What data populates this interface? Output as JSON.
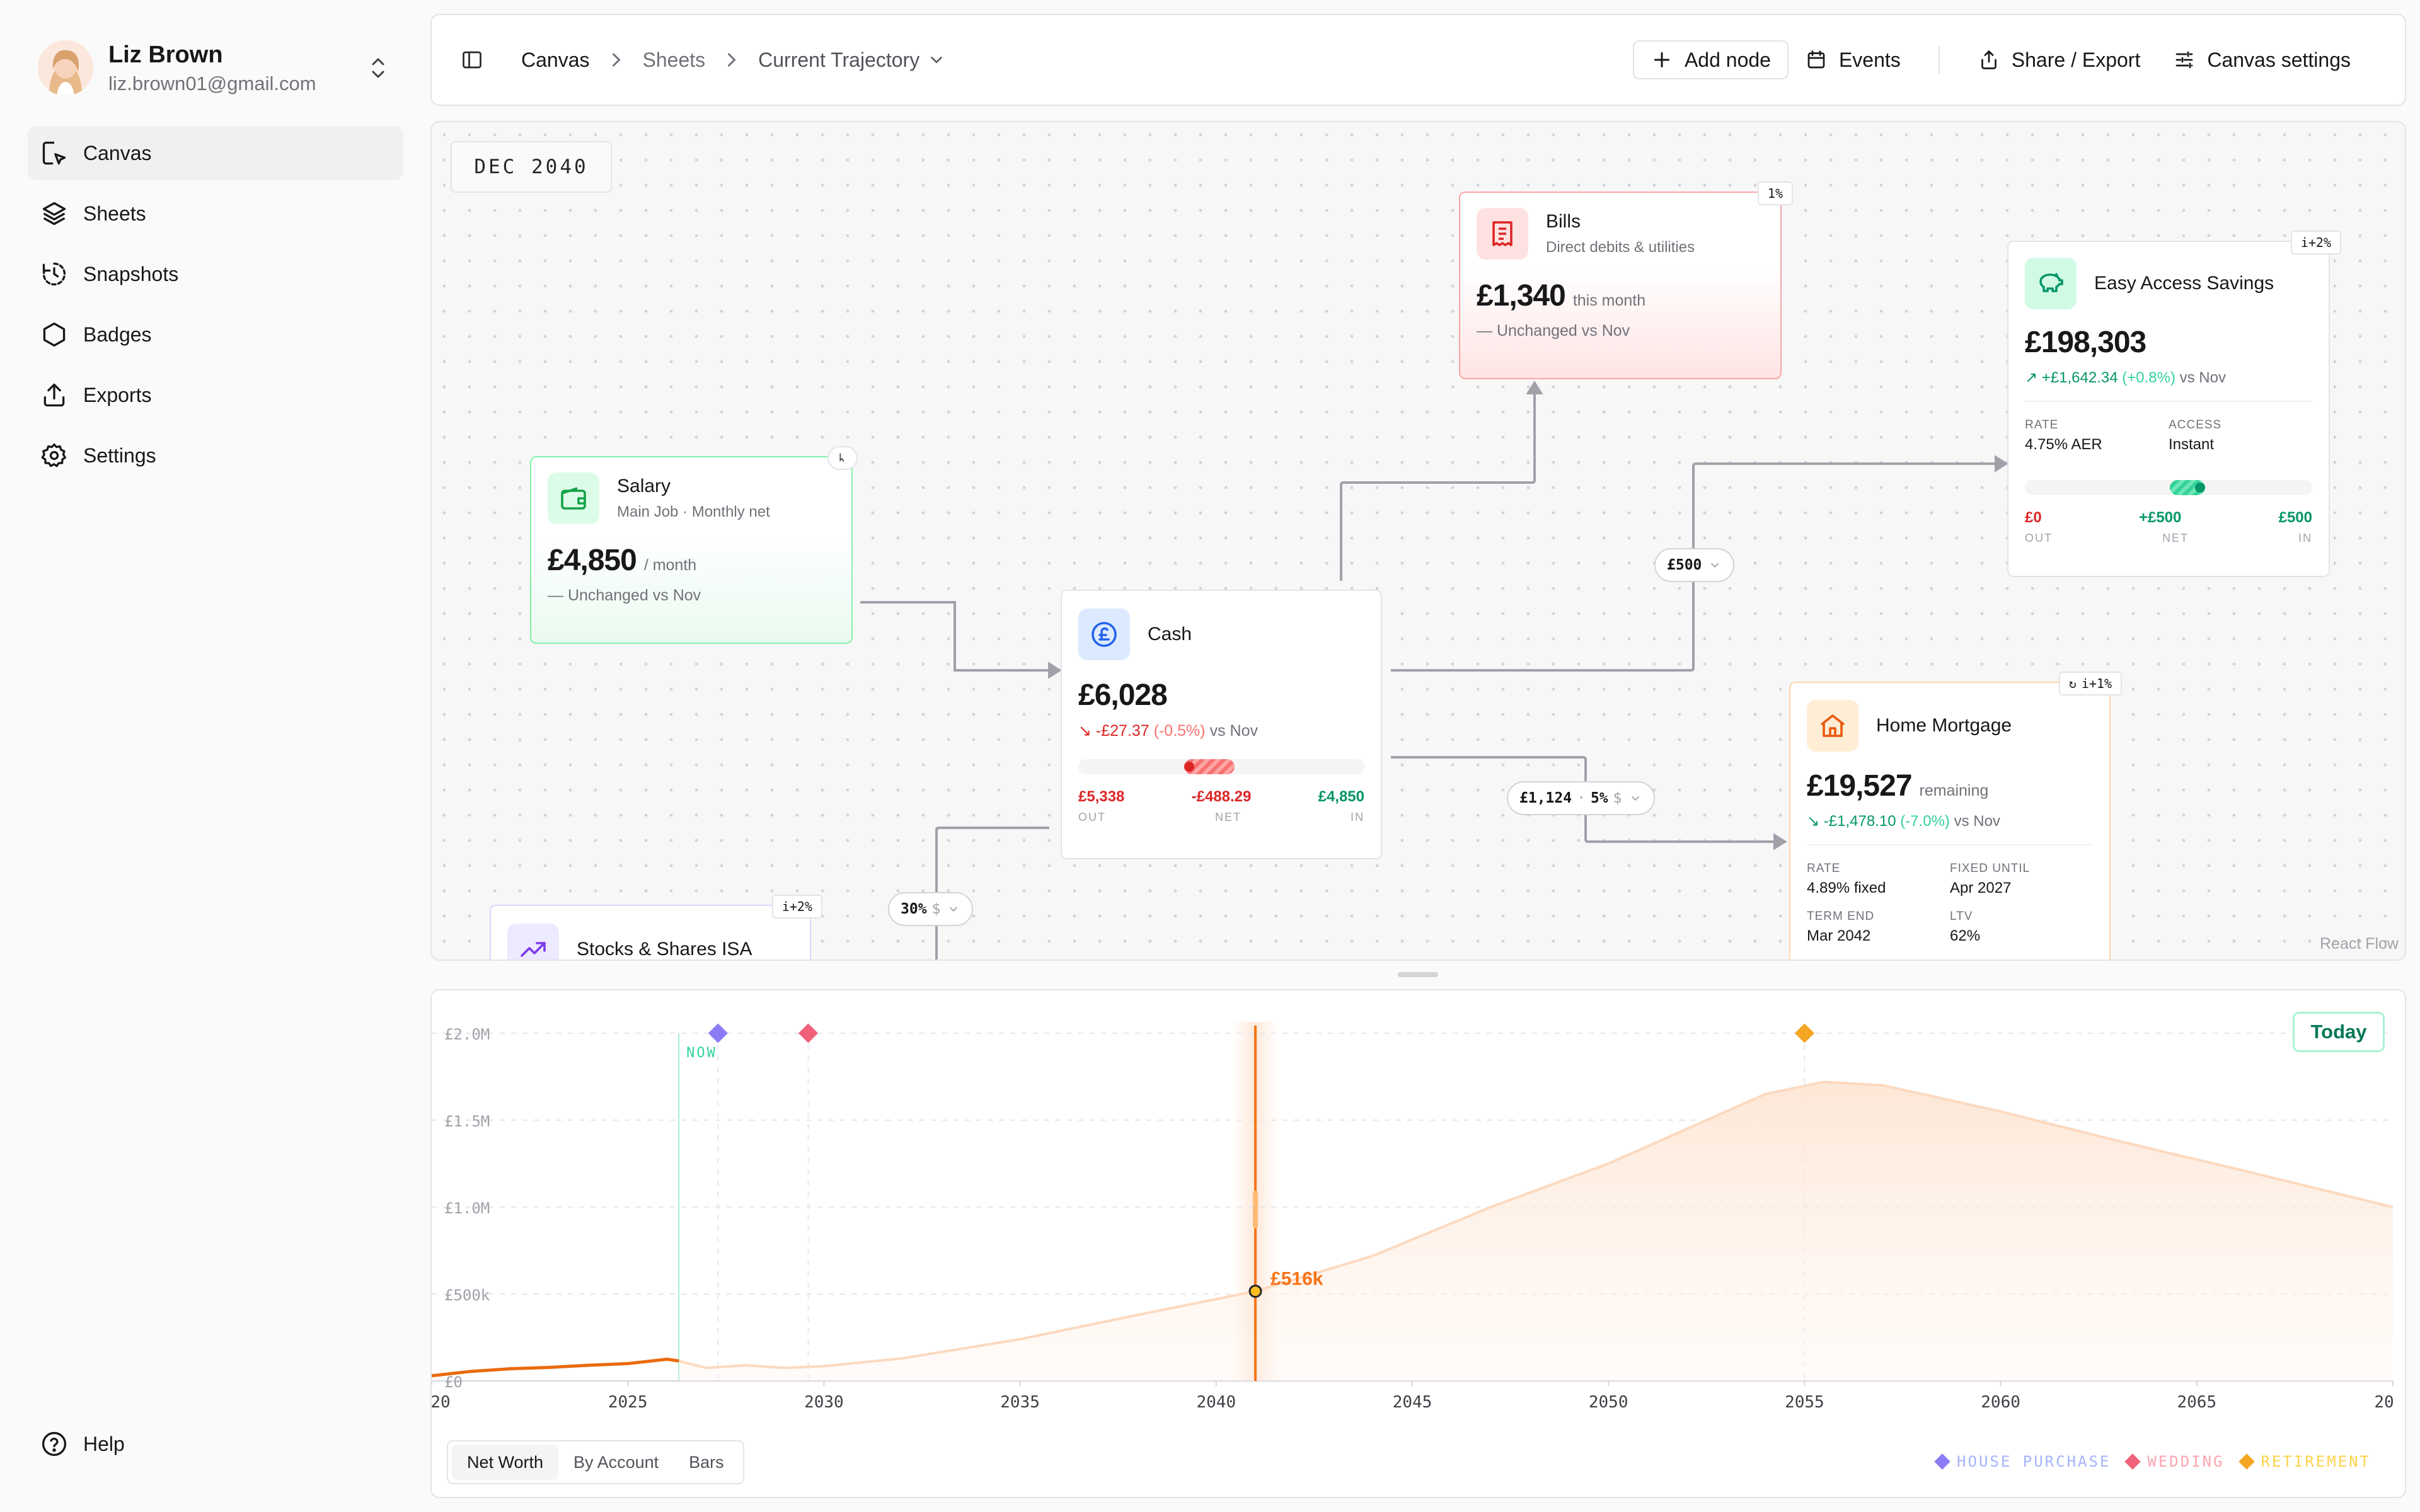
{
  "user": {
    "name": "Liz Brown",
    "email": "liz.brown01@gmail.com"
  },
  "nav": [
    {
      "label": "Canvas",
      "icon": "cursor-icon",
      "active": true
    },
    {
      "label": "Sheets",
      "icon": "layers-icon"
    },
    {
      "label": "Snapshots",
      "icon": "history-icon"
    },
    {
      "label": "Badges",
      "icon": "hexagon-icon"
    },
    {
      "label": "Exports",
      "icon": "upload-icon"
    },
    {
      "label": "Settings",
      "icon": "gear-icon"
    }
  ],
  "help_label": "Help",
  "breadcrumb": {
    "root": "Canvas",
    "mid": "Sheets",
    "current": "Current Trajectory"
  },
  "toolbar": {
    "add_node": "Add node",
    "events": "Events",
    "share": "Share / Export",
    "settings": "Canvas settings"
  },
  "canvas": {
    "date": "DEC 2040",
    "watermark": "React Flow",
    "salary": {
      "title": "Salary",
      "subtitle": "Main Job · Monthly net",
      "value": "£4,850",
      "unit": "/ month",
      "delta": "— Unchanged vs Nov"
    },
    "bills": {
      "title": "Bills",
      "subtitle": "Direct debits & utilities",
      "value": "£1,340",
      "unit": "this month",
      "delta": "— Unchanged vs Nov",
      "tag": "1%"
    },
    "cash": {
      "title": "Cash",
      "value": "£6,028",
      "delta_amount": "-£27.37",
      "delta_pct": "(-0.5%)",
      "delta_suffix": "vs Nov",
      "out": "£5,338",
      "net": "-£488.29",
      "in": "£4,850",
      "out_label": "OUT",
      "net_label": "NET",
      "in_label": "IN"
    },
    "savings": {
      "title": "Easy Access Savings",
      "value": "£198,303",
      "delta_amount": "+£1,642.34",
      "delta_pct": "(+0.8%)",
      "delta_suffix": "vs Nov",
      "rate_label": "RATE",
      "rate": "4.75% AER",
      "access_label": "ACCESS",
      "access": "Instant",
      "out": "£0",
      "net": "+£500",
      "in": "£500",
      "out_label": "OUT",
      "net_label": "NET",
      "in_label": "IN",
      "tag": "i+2%"
    },
    "mortgage": {
      "title": "Home Mortgage",
      "value": "£19,527",
      "unit": "remaining",
      "delta_amount": "-£1,478.10",
      "delta_pct": "(-7.0%)",
      "delta_suffix": "vs Nov",
      "rate_label": "RATE",
      "rate": "4.89% fixed",
      "fixed_label": "FIXED UNTIL",
      "fixed": "Apr 2027",
      "term_label": "TERM END",
      "term": "Mar 2042",
      "ltv_label": "LTV",
      "ltv": "62%",
      "tag": "i+1%"
    },
    "isa": {
      "title": "Stocks & Shares ISA",
      "tag": "i+2%"
    },
    "edges": {
      "to_savings": "£500",
      "to_mortgage": "£1,124",
      "to_mortgage_pct": "5%",
      "to_isa": "30%",
      "sym": "$"
    }
  },
  "chart_data": {
    "type": "area",
    "x_ticks": [
      "20",
      "2025",
      "2030",
      "2035",
      "2040",
      "2045",
      "2050",
      "2055",
      "2060",
      "2065",
      "20"
    ],
    "y_ticks": [
      "£0",
      "£500k",
      "£1.0M",
      "£1.5M",
      "£2.0M"
    ],
    "xlim": [
      2020,
      2070
    ],
    "ylim": [
      0,
      2000000
    ],
    "now_label": "NOW",
    "now_year": 2026.3,
    "selected": {
      "year": 2041,
      "value": 516000,
      "label": "£516k"
    },
    "history": [
      [
        2020,
        30000
      ],
      [
        2021,
        55000
      ],
      [
        2022,
        70000
      ],
      [
        2023,
        78000
      ],
      [
        2024,
        90000
      ],
      [
        2025,
        100000
      ],
      [
        2026,
        125000
      ],
      [
        2026.3,
        115000
      ]
    ],
    "projection": [
      [
        2026.3,
        115000
      ],
      [
        2027,
        75000
      ],
      [
        2028,
        90000
      ],
      [
        2029,
        75000
      ],
      [
        2030,
        85000
      ],
      [
        2032,
        130000
      ],
      [
        2035,
        240000
      ],
      [
        2038,
        380000
      ],
      [
        2041,
        516000
      ],
      [
        2044,
        720000
      ],
      [
        2047,
        1000000
      ],
      [
        2050,
        1250000
      ],
      [
        2052,
        1450000
      ],
      [
        2054,
        1650000
      ],
      [
        2055.5,
        1720000
      ],
      [
        2057,
        1700000
      ],
      [
        2060,
        1550000
      ],
      [
        2063,
        1380000
      ],
      [
        2066,
        1220000
      ],
      [
        2070,
        1000000
      ]
    ],
    "events": [
      {
        "name": "HOUSE PURCHASE",
        "year": 2027.3,
        "color": "#8b7cf6"
      },
      {
        "name": "WEDDING",
        "year": 2029.6,
        "color": "#f0627a"
      },
      {
        "name": "RETIREMENT",
        "year": 2055,
        "color": "#f5a623"
      }
    ],
    "grid": true
  },
  "chart_ui": {
    "today": "Today",
    "tabs": [
      "Net Worth",
      "By Account",
      "Bars"
    ]
  }
}
